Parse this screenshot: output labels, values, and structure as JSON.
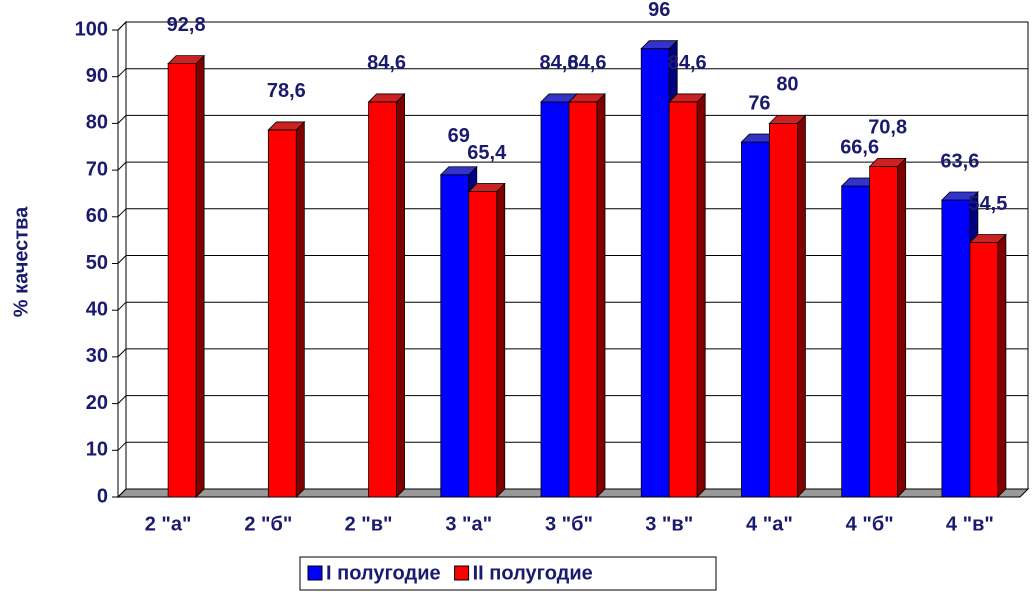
{
  "chart_data": {
    "type": "bar3d",
    "y_label": "% качества",
    "categories": [
      "2 \"а\"",
      "2 \"б\"",
      "2 \"в\"",
      "3 \"а\"",
      "3 \"б\"",
      "3 \"в\"",
      "4 \"а\"",
      "4 \"б\"",
      "4 \"в\""
    ],
    "series": [
      {
        "name": "I полугодие",
        "color": "#0000ff",
        "side": "#000080",
        "top": "#3333cc",
        "values": [
          null,
          null,
          null,
          69,
          84.6,
          96,
          76,
          66.6,
          63.6
        ],
        "value_labels": [
          null,
          null,
          null,
          "69",
          "84,6",
          "96",
          "76",
          "66,6",
          "63,6"
        ]
      },
      {
        "name": "II полугодие",
        "color": "#ff0000",
        "side": "#800000",
        "top": "#cc2222",
        "values": [
          92.8,
          78.6,
          84.6,
          65.4,
          84.6,
          84.6,
          80,
          70.8,
          54.5
        ],
        "value_labels": [
          "92,8",
          "78,6",
          "84,6",
          "65,4",
          "84,6",
          "84,6",
          "80",
          "70,8",
          "54,5"
        ]
      }
    ],
    "ylim": [
      0,
      100
    ],
    "yticks": [
      0,
      10,
      20,
      30,
      40,
      50,
      60,
      70,
      80,
      90,
      100
    ],
    "grid": true,
    "legend": "bottom"
  }
}
